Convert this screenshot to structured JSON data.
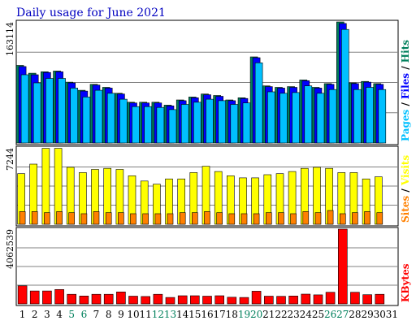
{
  "chart_data": {
    "type": "bar",
    "title": "Daily usage for June 2021",
    "days": [
      "1",
      "2",
      "3",
      "4",
      "5",
      "6",
      "7",
      "8",
      "9",
      "10",
      "11",
      "12",
      "13",
      "14",
      "15",
      "16",
      "17",
      "18",
      "19",
      "20",
      "21",
      "22",
      "23",
      "24",
      "25",
      "26",
      "27",
      "28",
      "29",
      "30",
      "31"
    ],
    "weekend_days": [
      "5",
      "6",
      "12",
      "13",
      "19",
      "20",
      "26",
      "27"
    ],
    "panels": [
      {
        "id": "hits",
        "ymax_label": "163114",
        "ylim": [
          0,
          163114
        ],
        "legend": [
          "Hits",
          "Files",
          "Pages"
        ],
        "legend_separator": "/",
        "series": [
          {
            "name": "Hits",
            "color": "#00805c",
            "values": [
              104500,
              94000,
              96000,
              97000,
              82000,
              71000,
              79000,
              75000,
              67000,
              55000,
              55000,
              55000,
              51000,
              58000,
              62000,
              66000,
              64000,
              58000,
              61000,
              116000,
              77000,
              75000,
              76000,
              85000,
              75000,
              80000,
              163114,
              81000,
              83000,
              80000,
              null
            ]
          },
          {
            "name": "Files",
            "color": "#0000ff",
            "values": [
              103000,
              92000,
              95000,
              96000,
              81000,
              70000,
              78000,
              74000,
              66000,
              54000,
              54000,
              54000,
              50000,
              57000,
              61000,
              65000,
              63000,
              57000,
              60000,
              115000,
              76000,
              74000,
              75000,
              84000,
              74000,
              79000,
              161000,
              80000,
              82000,
              79000,
              null
            ]
          },
          {
            "name": "Pages",
            "color": "#00c0ff",
            "values": [
              92000,
              81000,
              87000,
              87000,
              74000,
              62000,
              71000,
              67000,
              59000,
              49000,
              49000,
              48000,
              45000,
              52000,
              55000,
              59000,
              57000,
              52000,
              54000,
              108000,
              69000,
              67000,
              68000,
              77000,
              67000,
              72000,
              153000,
              72000,
              75000,
              72000,
              null
            ]
          }
        ]
      },
      {
        "id": "visits",
        "ymax_label": "7244",
        "ylim": [
          0,
          7244
        ],
        "legend": [
          "Visits",
          "Sites"
        ],
        "legend_separator": "/",
        "series": [
          {
            "name": "Visits",
            "color": "#ffff00",
            "values": [
              4800,
              5700,
              7200,
              7200,
              5400,
              4900,
              5200,
              5300,
              5200,
              4600,
              4100,
              3800,
              4300,
              4300,
              4900,
              5500,
              5000,
              4600,
              4400,
              4400,
              4700,
              4800,
              5000,
              5300,
              5400,
              5300,
              4900,
              4900,
              4300,
              4500,
              null
            ]
          },
          {
            "name": "Sites",
            "color": "#ff8000",
            "values": [
              1200,
              1200,
              1100,
              1200,
              1100,
              1000,
              1200,
              1100,
              1100,
              1000,
              1000,
              1000,
              1000,
              1100,
              1100,
              1200,
              1100,
              1000,
              1000,
              1000,
              1100,
              1100,
              1000,
              1200,
              1100,
              1300,
              1000,
              1100,
              1200,
              1100,
              null
            ]
          }
        ]
      },
      {
        "id": "kbytes",
        "ymax_label": "4062539",
        "ylim": [
          0,
          4062539
        ],
        "legend": [
          "KBytes"
        ],
        "legend_separator": "",
        "series": [
          {
            "name": "KBytes",
            "color": "#ff0000",
            "values": [
              980000,
              700000,
              700000,
              780000,
              520000,
              430000,
              520000,
              520000,
              650000,
              420000,
              400000,
              520000,
              350000,
              440000,
              440000,
              420000,
              440000,
              360000,
              350000,
              690000,
              420000,
              410000,
              430000,
              530000,
              490000,
              630000,
              4062539,
              630000,
              500000,
              520000,
              null
            ]
          }
        ]
      }
    ]
  }
}
